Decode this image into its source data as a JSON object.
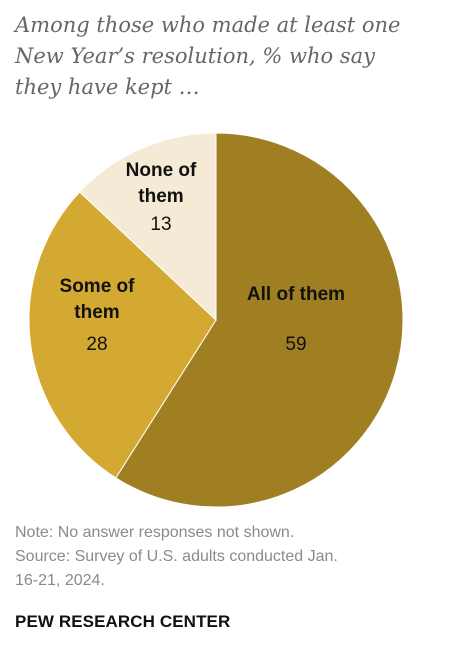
{
  "title_lines": [
    "Among those who made at least one",
    "New Year’s resolution, % who say",
    "they have kept …"
  ],
  "chart_data": {
    "type": "pie",
    "categories": [
      "All of them",
      "Some of them",
      "None of them"
    ],
    "values": [
      59,
      28,
      13
    ],
    "label_lines": [
      [
        "All of them"
      ],
      [
        "Some of",
        "them"
      ],
      [
        "None of",
        "them"
      ]
    ],
    "colors": [
      "#a07f23",
      "#d4a932",
      "#f4ead5"
    ],
    "start": "12 o'clock",
    "direction": "clockwise"
  },
  "note_lines": [
    "Note: No answer responses not shown.",
    "Source: Survey of U.S. adults conducted Jan.",
    "16-21, 2024."
  ],
  "brand": "PEW RESEARCH CENTER"
}
